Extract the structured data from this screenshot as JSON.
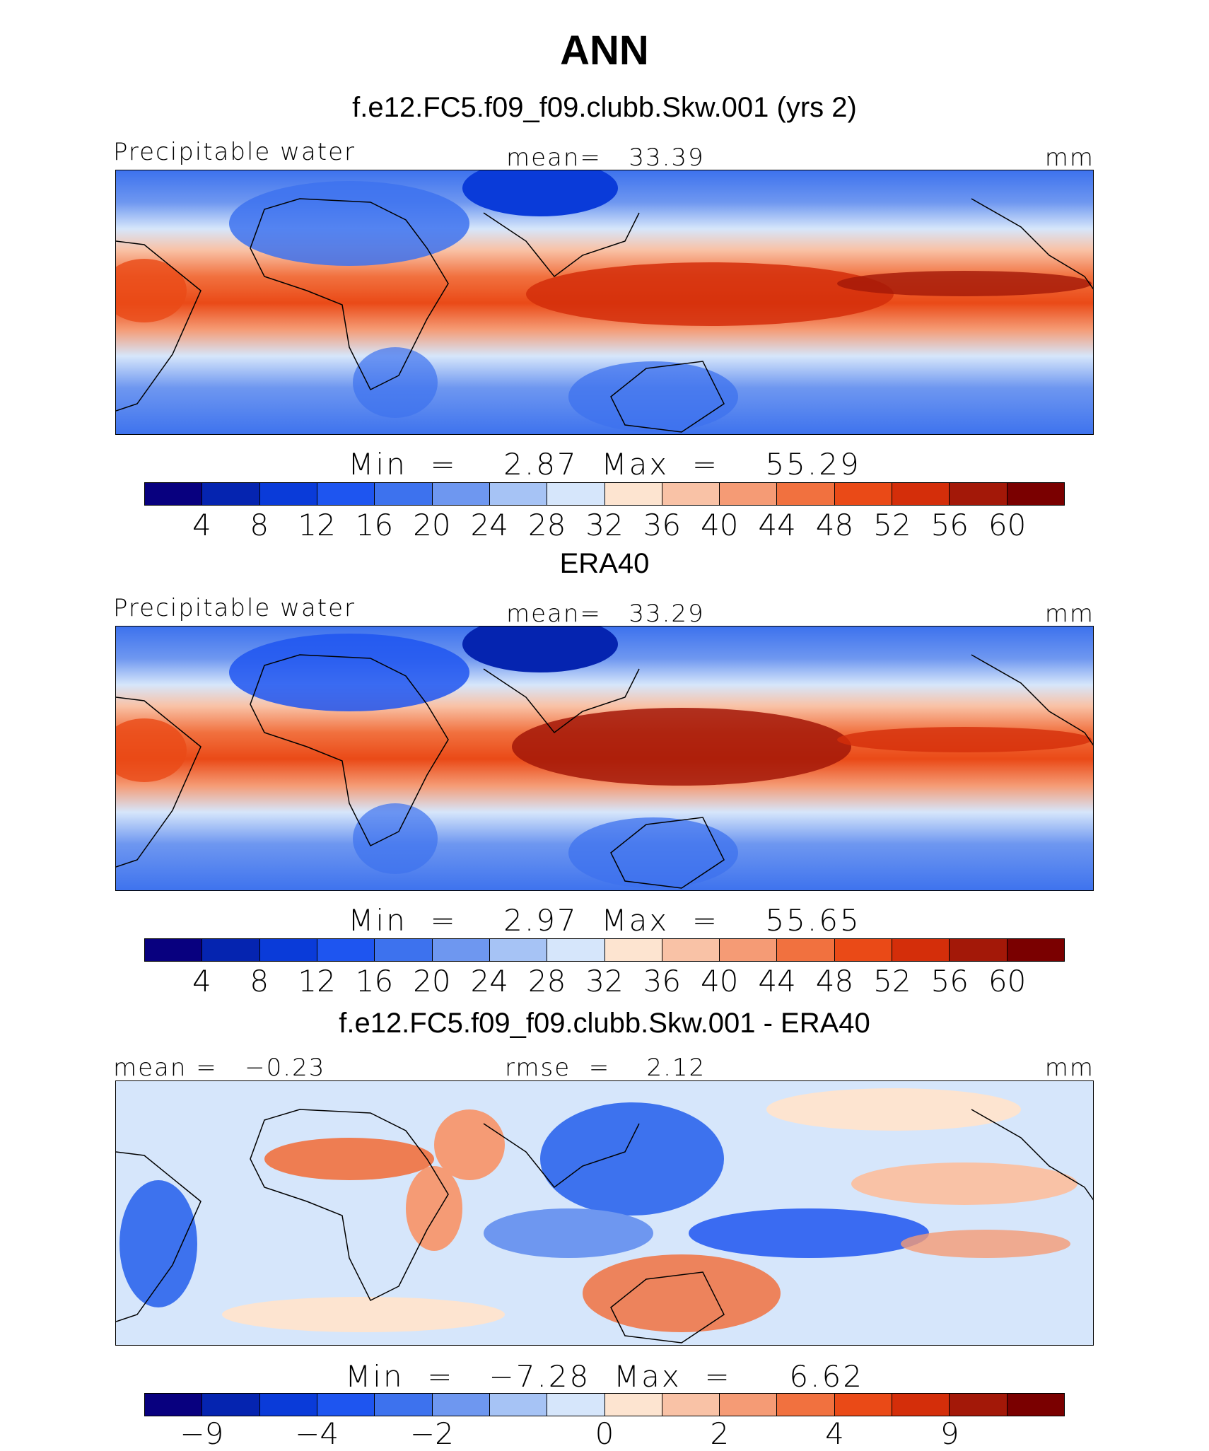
{
  "figure": {
    "season": "ANN"
  },
  "panels": [
    {
      "title": "f.e12.FC5.f09_f09.clubb.Skw.001 (yrs 2)",
      "left_label": "Precipitable water",
      "center_label": "mean=   33.39",
      "units": "mm",
      "minmax": "Min  =    2.87  Max  =    55.29",
      "colorbar_ticks": [
        "4",
        "8",
        "12",
        "16",
        "20",
        "24",
        "28",
        "32",
        "36",
        "40",
        "44",
        "48",
        "52",
        "56",
        "60"
      ]
    },
    {
      "title": "ERA40",
      "left_label": "Precipitable water",
      "center_label": "mean=   33.29",
      "units": "mm",
      "minmax": "Min  =    2.97  Max  =    55.65",
      "colorbar_ticks": [
        "4",
        "8",
        "12",
        "16",
        "20",
        "24",
        "28",
        "32",
        "36",
        "40",
        "44",
        "48",
        "52",
        "56",
        "60"
      ]
    },
    {
      "title": "f.e12.FC5.f09_f09.clubb.Skw.001 - ERA40",
      "left_label": "mean =   −0.23",
      "center_label": "rmse  =    2.12",
      "units": "mm",
      "minmax": "Min  =   −7.28  Max  =     6.62",
      "colorbar_ticks": [
        "−9",
        "−4",
        "−2",
        "0",
        "2",
        "4",
        "9"
      ]
    }
  ],
  "palette": [
    "#08007f",
    "#0524b0",
    "#0a3bd9",
    "#1e55f0",
    "#3d72ee",
    "#6e97f0",
    "#a6c3f5",
    "#d6e6fb",
    "#fde4d0",
    "#f9c2a6",
    "#f59b75",
    "#f1713f",
    "#ea4a17",
    "#d42e0a",
    "#a31808",
    "#7a0000"
  ]
}
